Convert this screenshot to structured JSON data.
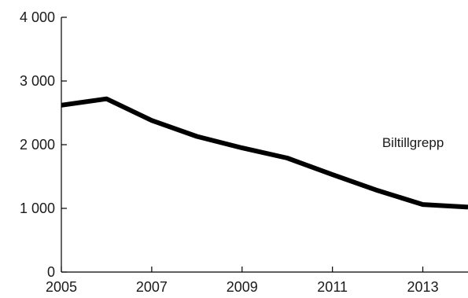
{
  "chart_data": {
    "type": "line",
    "x": [
      2005,
      2006,
      2007,
      2008,
      2009,
      2010,
      2011,
      2012,
      2013,
      2014
    ],
    "series": [
      {
        "name": "Biltillgrepp",
        "values": [
          2620,
          2720,
          2380,
          2130,
          1950,
          1790,
          1530,
          1280,
          1060,
          1020
        ]
      }
    ],
    "xlim": [
      2005,
      2014
    ],
    "ylim": [
      0,
      4000
    ],
    "x_ticks": [
      {
        "value": 2005,
        "label": "2005"
      },
      {
        "value": 2007,
        "label": "2007"
      },
      {
        "value": 2009,
        "label": "2009"
      },
      {
        "value": 2011,
        "label": "2011"
      },
      {
        "value": 2013,
        "label": "2013"
      }
    ],
    "y_ticks": [
      {
        "value": 0,
        "label": "0"
      },
      {
        "value": 1000,
        "label": "1 000"
      },
      {
        "value": 2000,
        "label": "2 000"
      },
      {
        "value": 3000,
        "label": "3 000"
      },
      {
        "value": 4000,
        "label": "4 000"
      }
    ],
    "annotation": {
      "text": "Biltillgrepp",
      "x": 2012.1,
      "y": 1960
    },
    "grid": false,
    "line_color": "#000000",
    "axis_color": "#000000"
  }
}
